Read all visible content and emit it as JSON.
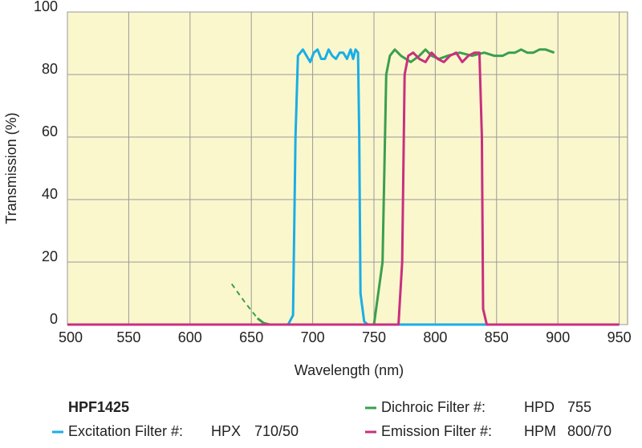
{
  "chart_data": {
    "type": "line",
    "xlabel": "Wavelength (nm)",
    "ylabel": "Transmission (%)",
    "xlim": [
      500,
      957
    ],
    "ylim": [
      0,
      100
    ],
    "xticks": [
      500,
      550,
      600,
      650,
      700,
      750,
      800,
      850,
      900,
      950
    ],
    "yticks": [
      0,
      20,
      40,
      60,
      80,
      100
    ],
    "grid": true,
    "background": "#fbf7cd",
    "legend_title": "HPF1425",
    "series": [
      {
        "name": "Excitation Filter #:",
        "part": "HPX",
        "spec": "710/50",
        "color": "#1aaee6",
        "x": [
          500,
          680,
          684,
          686,
          688,
          692,
          695,
          698,
          701,
          704,
          707,
          710,
          713,
          716,
          719,
          722,
          725,
          728,
          731,
          733,
          735,
          737,
          738,
          739,
          742,
          745,
          950
        ],
        "values": [
          0,
          0,
          3,
          60,
          86,
          88,
          86,
          84,
          87,
          88,
          85,
          85,
          88,
          86,
          85,
          87,
          87,
          85,
          88,
          85,
          88,
          87,
          60,
          10,
          1,
          0,
          0
        ]
      },
      {
        "name": "Dichroic Filter #:",
        "part": "HPD",
        "spec": "755",
        "color": "#3a9f4e",
        "dash_below": 660,
        "x": [
          634,
          645,
          655,
          660,
          665,
          750,
          757,
          760,
          763,
          767,
          772,
          780,
          787,
          792,
          797,
          803,
          810,
          820,
          830,
          840,
          848,
          855,
          860,
          865,
          870,
          875,
          880,
          885,
          890,
          897
        ],
        "values": [
          13,
          7,
          2,
          0.5,
          0,
          0,
          20,
          80,
          86,
          88,
          86,
          84,
          86,
          88,
          86,
          85,
          86,
          87,
          86,
          87,
          86,
          86,
          87,
          87,
          88,
          87,
          87,
          88,
          88,
          87
        ]
      },
      {
        "name": "Emission Filter #:",
        "part": "HPM",
        "spec": "800/70",
        "color": "#c8307f",
        "x": [
          500,
          770,
          773,
          775,
          778,
          782,
          787,
          792,
          797,
          802,
          807,
          812,
          817,
          822,
          827,
          832,
          836,
          838,
          839,
          842,
          950
        ],
        "values": [
          0,
          0,
          20,
          80,
          86,
          87,
          85,
          84,
          87,
          85,
          84,
          86,
          87,
          84,
          86,
          87,
          87,
          60,
          5,
          0,
          0
        ]
      }
    ]
  }
}
